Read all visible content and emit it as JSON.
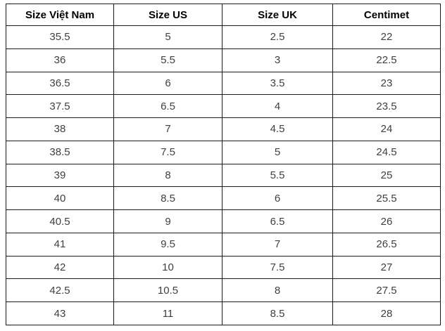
{
  "table": {
    "title": "shoe-size-conversion-table",
    "columns": [
      "Size Việt Nam",
      "Size US",
      "Size UK",
      "Centimet"
    ],
    "rows": [
      [
        "35.5",
        "5",
        "2.5",
        "22"
      ],
      [
        "36",
        "5.5",
        "3",
        "22.5"
      ],
      [
        "36.5",
        "6",
        "3.5",
        "23"
      ],
      [
        "37.5",
        "6.5",
        "4",
        "23.5"
      ],
      [
        "38",
        "7",
        "4.5",
        "24"
      ],
      [
        "38.5",
        "7.5",
        "5",
        "24.5"
      ],
      [
        "39",
        "8",
        "5.5",
        "25"
      ],
      [
        "40",
        "8.5",
        "6",
        "25.5"
      ],
      [
        "40.5",
        "9",
        "6.5",
        "26"
      ],
      [
        "41",
        "9.5",
        "7",
        "26.5"
      ],
      [
        "42",
        "10",
        "7.5",
        "27"
      ],
      [
        "42.5",
        "10.5",
        "8",
        "27.5"
      ],
      [
        "43",
        "11",
        "8.5",
        "28"
      ]
    ],
    "colors": {
      "border": "#1a1a1a",
      "header_text": "#000000",
      "cell_text": "#3f3f3f",
      "background": "#ffffff"
    }
  }
}
